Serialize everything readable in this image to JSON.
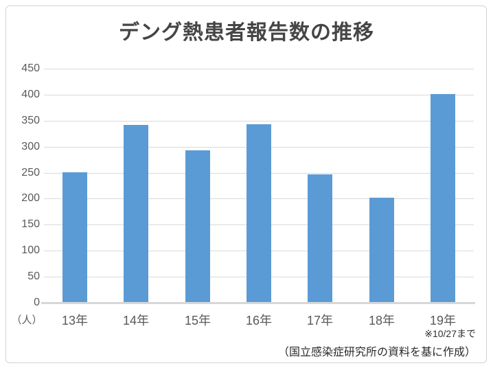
{
  "chart_data": {
    "type": "bar",
    "title": "デング熱患者報告数の推移",
    "categories": [
      "13年",
      "14年",
      "15年",
      "16年",
      "17年",
      "18年",
      "19年"
    ],
    "values": [
      249,
      341,
      292,
      342,
      245,
      200,
      400
    ],
    "unit_label": "（人）",
    "xlabel": "",
    "ylabel": "",
    "ylim": [
      0,
      450
    ],
    "ytick_step": 50,
    "yticks": [
      0,
      50,
      100,
      150,
      200,
      250,
      300,
      350,
      400,
      450
    ],
    "grid": "horizontal",
    "legend_position": "none",
    "bar_color": "#5B9BD5",
    "annotations": [
      "※10/27まで",
      "（国立感染症研究所の資料を基に作成）"
    ]
  },
  "colors": {
    "bar": "#5B9BD5",
    "gridline": "#D9D9D9",
    "axis_line": "#D7D7D7",
    "axis_text": "#595959",
    "title_text": "#454545",
    "footnote_text": "#2A2A2A",
    "frame_border": "#D2D2D2",
    "background": "#FFFFFF"
  }
}
